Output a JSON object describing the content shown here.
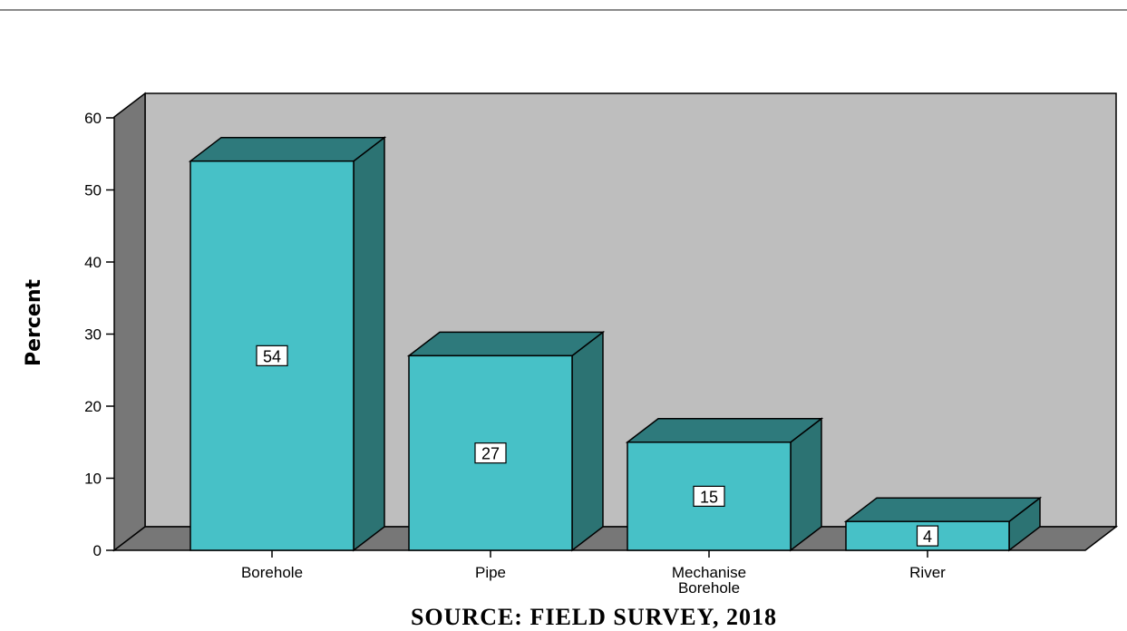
{
  "chart_data": {
    "type": "bar",
    "categories": [
      "Borehole",
      "Pipe",
      "Mechanise Borehole",
      "River"
    ],
    "category_lines": [
      [
        "Borehole"
      ],
      [
        "Pipe"
      ],
      [
        "Mechanise",
        "Borehole"
      ],
      [
        "River"
      ]
    ],
    "values": [
      54,
      27,
      15,
      4
    ],
    "value_labels": [
      "54",
      "27",
      "15",
      "4"
    ],
    "ylabel": "Percent",
    "xlabel": "",
    "ylim": [
      0,
      60
    ],
    "yticks": [
      0,
      10,
      20,
      30,
      40,
      50,
      60
    ],
    "grid": false,
    "legend": "none",
    "style": "3d"
  },
  "caption": "SOURCE: FIELD SURVEY, 2018",
  "colors": {
    "bar_front": "#47c1c7",
    "bar_top": "#2e7a7c",
    "bar_side": "#2c7373",
    "back_wall": "#bebebe",
    "side_wall": "#777777",
    "floor": "#777777"
  }
}
